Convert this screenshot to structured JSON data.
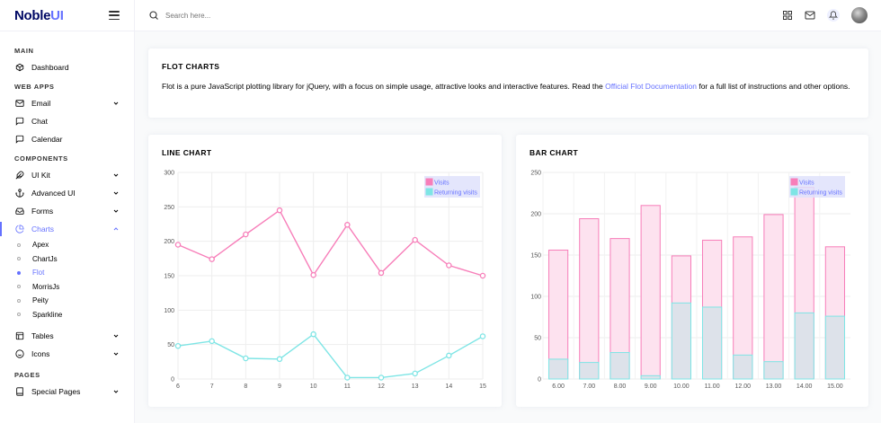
{
  "brand": {
    "name_main": "Noble",
    "name_accent": "UI"
  },
  "search": {
    "placeholder": "Search here..."
  },
  "sidebar": {
    "main_category": "Main",
    "dashboard": "Dashboard",
    "webapps_category": "Web Apps",
    "email": "Email",
    "chat": "Chat",
    "calendar": "Calendar",
    "components_category": "Components",
    "uikit": "UI Kit",
    "advanced_ui": "Advanced UI",
    "forms": "Forms",
    "charts": "Charts",
    "charts_sub": [
      "Apex",
      "ChartJs",
      "Flot",
      "MorrisJs",
      "Peity",
      "Sparkline"
    ],
    "tables": "Tables",
    "icons": "Icons",
    "pages_category": "Pages",
    "special_pages": "Special Pages"
  },
  "intro": {
    "title": "Flot Charts",
    "text_before": "Flot is a pure JavaScript plotting library for jQuery, with a focus on simple usage, attractive looks and interactive features. Read the ",
    "link": "Official Flot Documentation",
    "text_after": " for a full list of instructions and other options."
  },
  "colors": {
    "visits": "#f77eb9",
    "returning": "#7ee5e5",
    "accent": "#6571ff"
  },
  "chart_data": [
    {
      "type": "line",
      "title": "Line Chart",
      "x": [
        6,
        7,
        8,
        9,
        10,
        11,
        12,
        13,
        14,
        15
      ],
      "xlim": [
        6,
        15
      ],
      "ylim": [
        0,
        300
      ],
      "yticks": [
        0,
        50,
        100,
        150,
        200,
        250,
        300
      ],
      "legend_position": "top-right",
      "grid": true,
      "series": [
        {
          "name": "Visits",
          "values": [
            195,
            174,
            210,
            245,
            151,
            224,
            154,
            202,
            165,
            150
          ]
        },
        {
          "name": "Returning visits",
          "values": [
            48,
            55,
            30,
            29,
            65,
            2,
            2,
            8,
            34,
            62
          ]
        }
      ]
    },
    {
      "type": "bar",
      "title": "Bar Chart",
      "categories": [
        "6.00",
        "7.00",
        "8.00",
        "9.00",
        "10.00",
        "11.00",
        "12.00",
        "13.00",
        "14.00",
        "15.00"
      ],
      "ylim": [
        0,
        250
      ],
      "yticks": [
        0,
        50,
        100,
        150,
        200,
        250
      ],
      "legend_position": "top-right",
      "grid": true,
      "series": [
        {
          "name": "Visits",
          "values": [
            156,
            194,
            170,
            210,
            149,
            168,
            172,
            199,
            232,
            160
          ]
        },
        {
          "name": "Returning visits",
          "values": [
            24,
            20,
            32,
            4,
            92,
            87,
            29,
            21,
            80,
            76
          ]
        }
      ]
    }
  ]
}
